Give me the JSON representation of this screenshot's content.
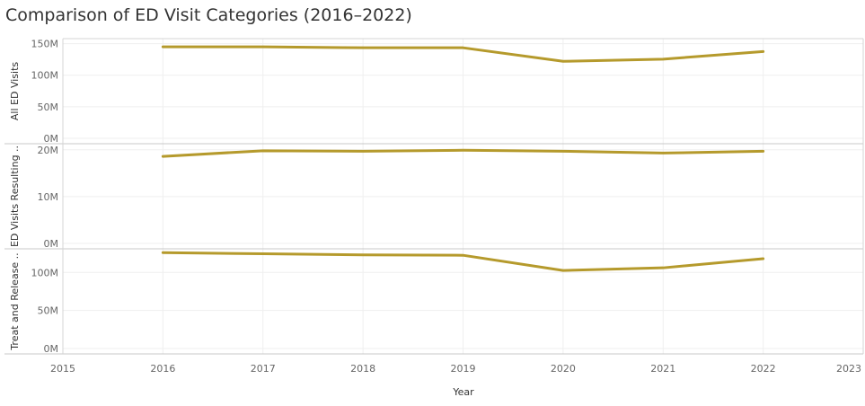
{
  "title": "Comparison of ED Visit Categories (2016–2022)",
  "chart_data": {
    "type": "line",
    "title": "Comparison of ED Visit Categories (2016–2022)",
    "xlabel": "Year",
    "x_ticks": [
      "2015",
      "2016",
      "2017",
      "2018",
      "2019",
      "2020",
      "2021",
      "2022",
      "2023"
    ],
    "xlim": [
      2015,
      2023
    ],
    "x": [
      2016,
      2017,
      2018,
      2019,
      2020,
      2021,
      2022
    ],
    "grid": true,
    "legend": "none",
    "series_color": "#B59A2C",
    "panels": [
      {
        "ylabel": "All ED Visits",
        "ylim": [
          0,
          158000000
        ],
        "y_ticks": [
          {
            "value": 0,
            "label": "0M"
          },
          {
            "value": 50000000,
            "label": "50M"
          },
          {
            "value": 100000000,
            "label": "100M"
          },
          {
            "value": 150000000,
            "label": "150M"
          }
        ],
        "values": [
          145000000,
          145000000,
          143500000,
          143500000,
          122000000,
          125500000,
          137500000
        ]
      },
      {
        "ylabel": "ED Visits Resulting ..",
        "ylim": [
          0,
          21300000
        ],
        "y_ticks": [
          {
            "value": 0,
            "label": "0M"
          },
          {
            "value": 10000000,
            "label": "10M"
          },
          {
            "value": 20000000,
            "label": "20M"
          }
        ],
        "values": [
          18600000,
          19800000,
          19700000,
          19900000,
          19700000,
          19300000,
          19700000
        ]
      },
      {
        "ylabel": "Treat and Release ..",
        "ylim": [
          0,
          131000000
        ],
        "y_ticks": [
          {
            "value": 0,
            "label": "0M"
          },
          {
            "value": 50000000,
            "label": "50M"
          },
          {
            "value": 100000000,
            "label": "100M"
          }
        ],
        "values": [
          126000000,
          124500000,
          123000000,
          122500000,
          102500000,
          106000000,
          118000000
        ]
      }
    ]
  }
}
